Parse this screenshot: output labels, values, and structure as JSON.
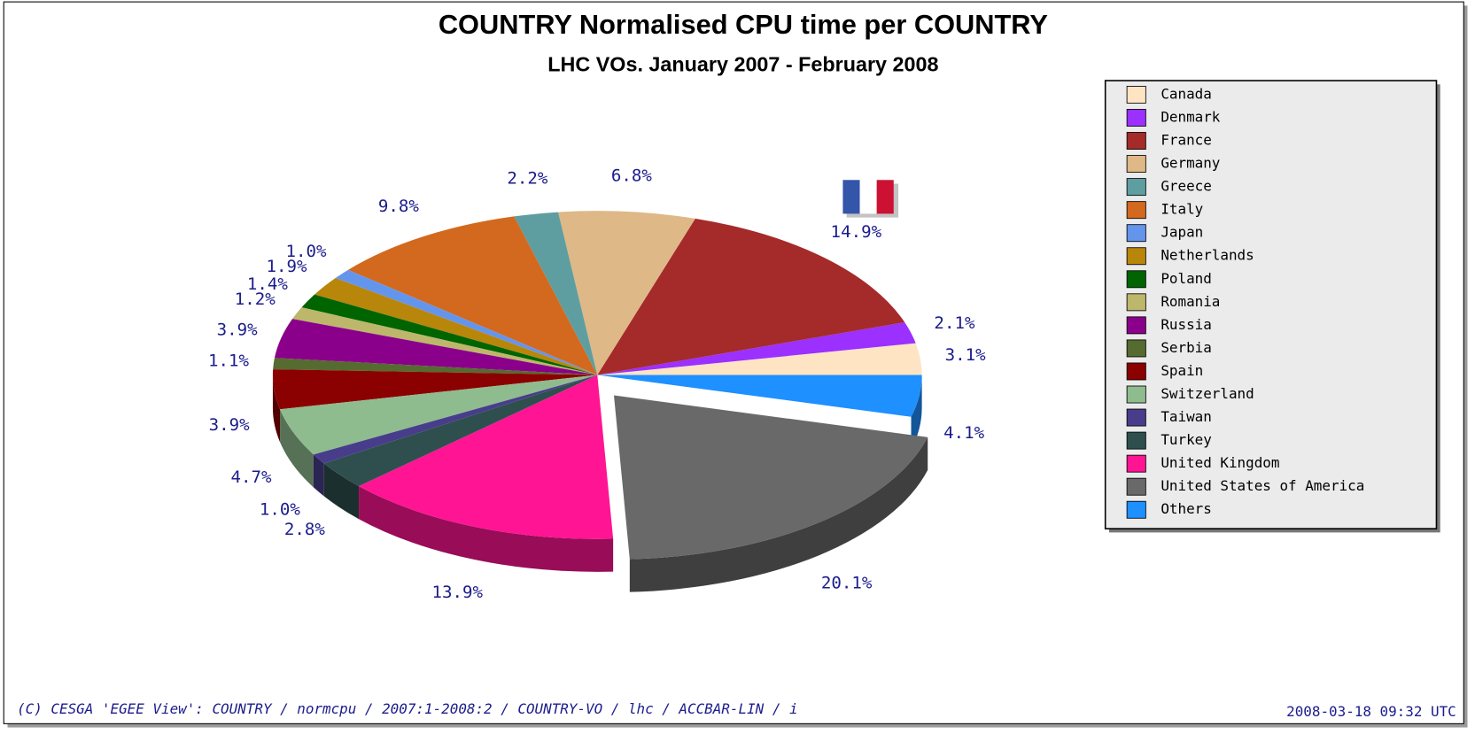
{
  "chart_data": {
    "type": "pie",
    "title": "COUNTRY Normalised CPU time per COUNTRY",
    "subtitle": "LHC VOs. January 2007 - February 2008",
    "categories": [
      "Canada",
      "Denmark",
      "France",
      "Germany",
      "Greece",
      "Italy",
      "Japan",
      "Netherlands",
      "Poland",
      "Romania",
      "Russia",
      "Serbia",
      "Spain",
      "Switzerland",
      "Taiwan",
      "Turkey",
      "United Kingdom",
      "United States of America",
      "Others"
    ],
    "values": [
      3.1,
      2.1,
      14.9,
      6.8,
      2.2,
      9.8,
      1.0,
      1.9,
      1.4,
      1.2,
      3.9,
      1.1,
      3.9,
      4.7,
      1.0,
      2.8,
      13.9,
      20.1,
      4.1
    ],
    "value_labels": [
      "3.1%",
      "2.1%",
      "14.9%",
      "6.8%",
      "2.2%",
      "9.8%",
      "1.0%",
      "1.9%",
      "1.4%",
      "1.2%",
      "3.9%",
      "1.1%",
      "3.9%",
      "4.7%",
      "1.0%",
      "2.8%",
      "13.9%",
      "20.1%",
      "4.1%"
    ],
    "colors": [
      "#ffe4c4",
      "#9b30ff",
      "#a52a2a",
      "#deb887",
      "#5f9ea0",
      "#d2691e",
      "#6495ed",
      "#b8860b",
      "#006400",
      "#bdb76b",
      "#8b008b",
      "#556b2f",
      "#8b0000",
      "#8fbc8f",
      "#483d8b",
      "#2f4f4f",
      "#ff1493",
      "#696969",
      "#1e90ff"
    ],
    "exploded": "United States of America",
    "footer": "(C) CESGA 'EGEE View': COUNTRY / normcpu / 2007:1-2008:2 / COUNTRY-VO / lhc / ACCBAR-LIN / i",
    "timestamp": "2008-03-18 09:32 UTC"
  }
}
